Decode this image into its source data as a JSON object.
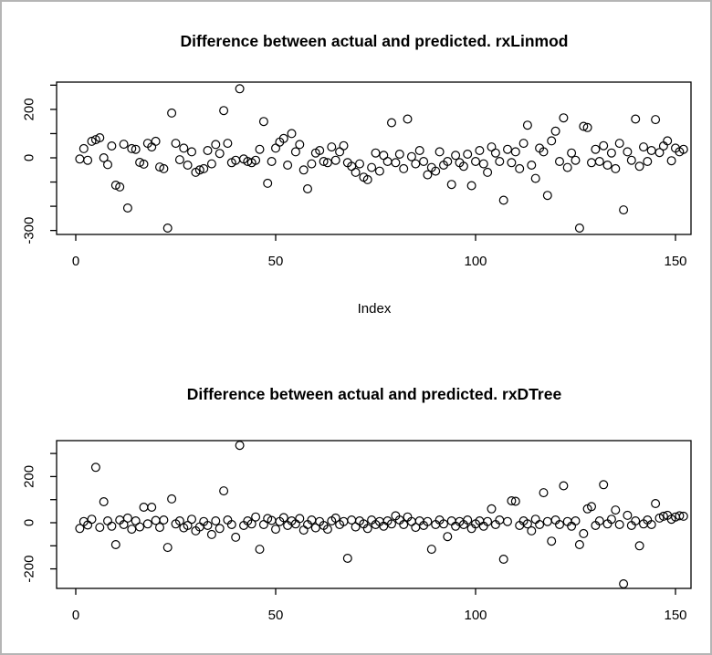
{
  "window": {
    "background_color": "#ffffff",
    "border_color": "#b5b5b5"
  },
  "chart_data": [
    {
      "type": "scatter",
      "title": "Difference between actual and predicted. rxLinmod",
      "xlabel": "Index",
      "ylabel": "",
      "marker": "open-circle",
      "grid": false,
      "xlim": [
        -5,
        157
      ],
      "ylim": [
        -316,
        313
      ],
      "x_ticks": [
        0,
        50,
        100,
        150
      ],
      "y_ticks": [
        300,
        200,
        100,
        0,
        -100,
        -200,
        -300
      ],
      "y_tick_labels": [
        "",
        "200",
        "",
        "0",
        "",
        "",
        "-300"
      ],
      "x_start": 1,
      "x_step": 1,
      "y": [
        -5,
        38,
        -10,
        68,
        75,
        83,
        0,
        -28,
        49,
        -113,
        -120,
        56,
        -207,
        38,
        35,
        -19,
        -26,
        60,
        45,
        68,
        -38,
        -45,
        -290,
        185,
        60,
        -8,
        40,
        -30,
        25,
        -60,
        -50,
        -45,
        30,
        -25,
        55,
        18,
        195,
        60,
        -20,
        -10,
        285,
        -5,
        -15,
        -20,
        -10,
        35,
        150,
        -105,
        -15,
        40,
        65,
        80,
        -30,
        100,
        25,
        55,
        -50,
        -128,
        -25,
        20,
        30,
        -15,
        -20,
        45,
        -10,
        25,
        50,
        -20,
        -35,
        -60,
        -25,
        -80,
        -90,
        -40,
        20,
        -55,
        10,
        -15,
        145,
        -20,
        15,
        -45,
        160,
        5,
        -25,
        30,
        -15,
        -70,
        -40,
        -55,
        25,
        -30,
        -15,
        -110,
        10,
        -20,
        -35,
        15,
        -115,
        -15,
        30,
        -25,
        -60,
        45,
        20,
        -15,
        -175,
        35,
        -20,
        25,
        -45,
        60,
        135,
        -30,
        -85,
        40,
        25,
        -155,
        70,
        110,
        -15,
        165,
        -40,
        20,
        -10,
        -290,
        130,
        125,
        -20,
        35,
        -15,
        50,
        -30,
        20,
        -45,
        60,
        -215,
        25,
        -10,
        160,
        -35,
        45,
        -15,
        30,
        158,
        22,
        49,
        70,
        -12,
        40,
        25,
        35
      ]
    },
    {
      "type": "scatter",
      "title": "Difference between actual and predicted. rxDTree",
      "xlabel": "",
      "ylabel": "",
      "marker": "open-circle",
      "grid": false,
      "xlim": [
        -5,
        157
      ],
      "ylim": [
        -285,
        356
      ],
      "x_ticks": [
        0,
        50,
        100,
        150
      ],
      "y_ticks": [
        300,
        200,
        100,
        0,
        -100,
        -200
      ],
      "y_tick_labels": [
        "",
        "200",
        "",
        "0",
        "",
        "-200"
      ],
      "x_start": 1,
      "x_step": 1,
      "y": [
        -25,
        5,
        -10,
        15,
        240,
        -20,
        91,
        8,
        -15,
        -95,
        12,
        -8,
        20,
        -28,
        8,
        -18,
        67,
        -5,
        67,
        10,
        -20,
        12,
        -107,
        103,
        -5,
        8,
        -22,
        -12,
        15,
        -35,
        -18,
        5,
        -12,
        -51,
        8,
        -25,
        138,
        12,
        -8,
        -63,
        335,
        -12,
        8,
        -5,
        25,
        -115,
        -8,
        18,
        10,
        -28,
        5,
        22,
        -12,
        8,
        -5,
        18,
        -32,
        -8,
        12,
        -22,
        5,
        -12,
        -28,
        8,
        20,
        -8,
        5,
        -154,
        12,
        -18,
        8,
        -5,
        -25,
        12,
        -8,
        5,
        -15,
        8,
        -5,
        30,
        12,
        -8,
        25,
        5,
        -20,
        8,
        -12,
        5,
        -115,
        -8,
        12,
        -5,
        -60,
        8,
        -15,
        5,
        -8,
        12,
        -25,
        -5,
        8,
        -15,
        5,
        60,
        -8,
        12,
        -158,
        5,
        95,
        93,
        -12,
        8,
        -5,
        -35,
        15,
        -8,
        130,
        5,
        -80,
        12,
        -8,
        160,
        5,
        -15,
        8,
        -95,
        -47,
        60,
        70,
        -12,
        8,
        165,
        -5,
        15,
        55,
        -8,
        -265,
        32,
        -12,
        8,
        -100,
        -5,
        12,
        -8,
        83,
        20,
        28,
        32,
        15,
        25,
        30,
        28
      ]
    }
  ]
}
